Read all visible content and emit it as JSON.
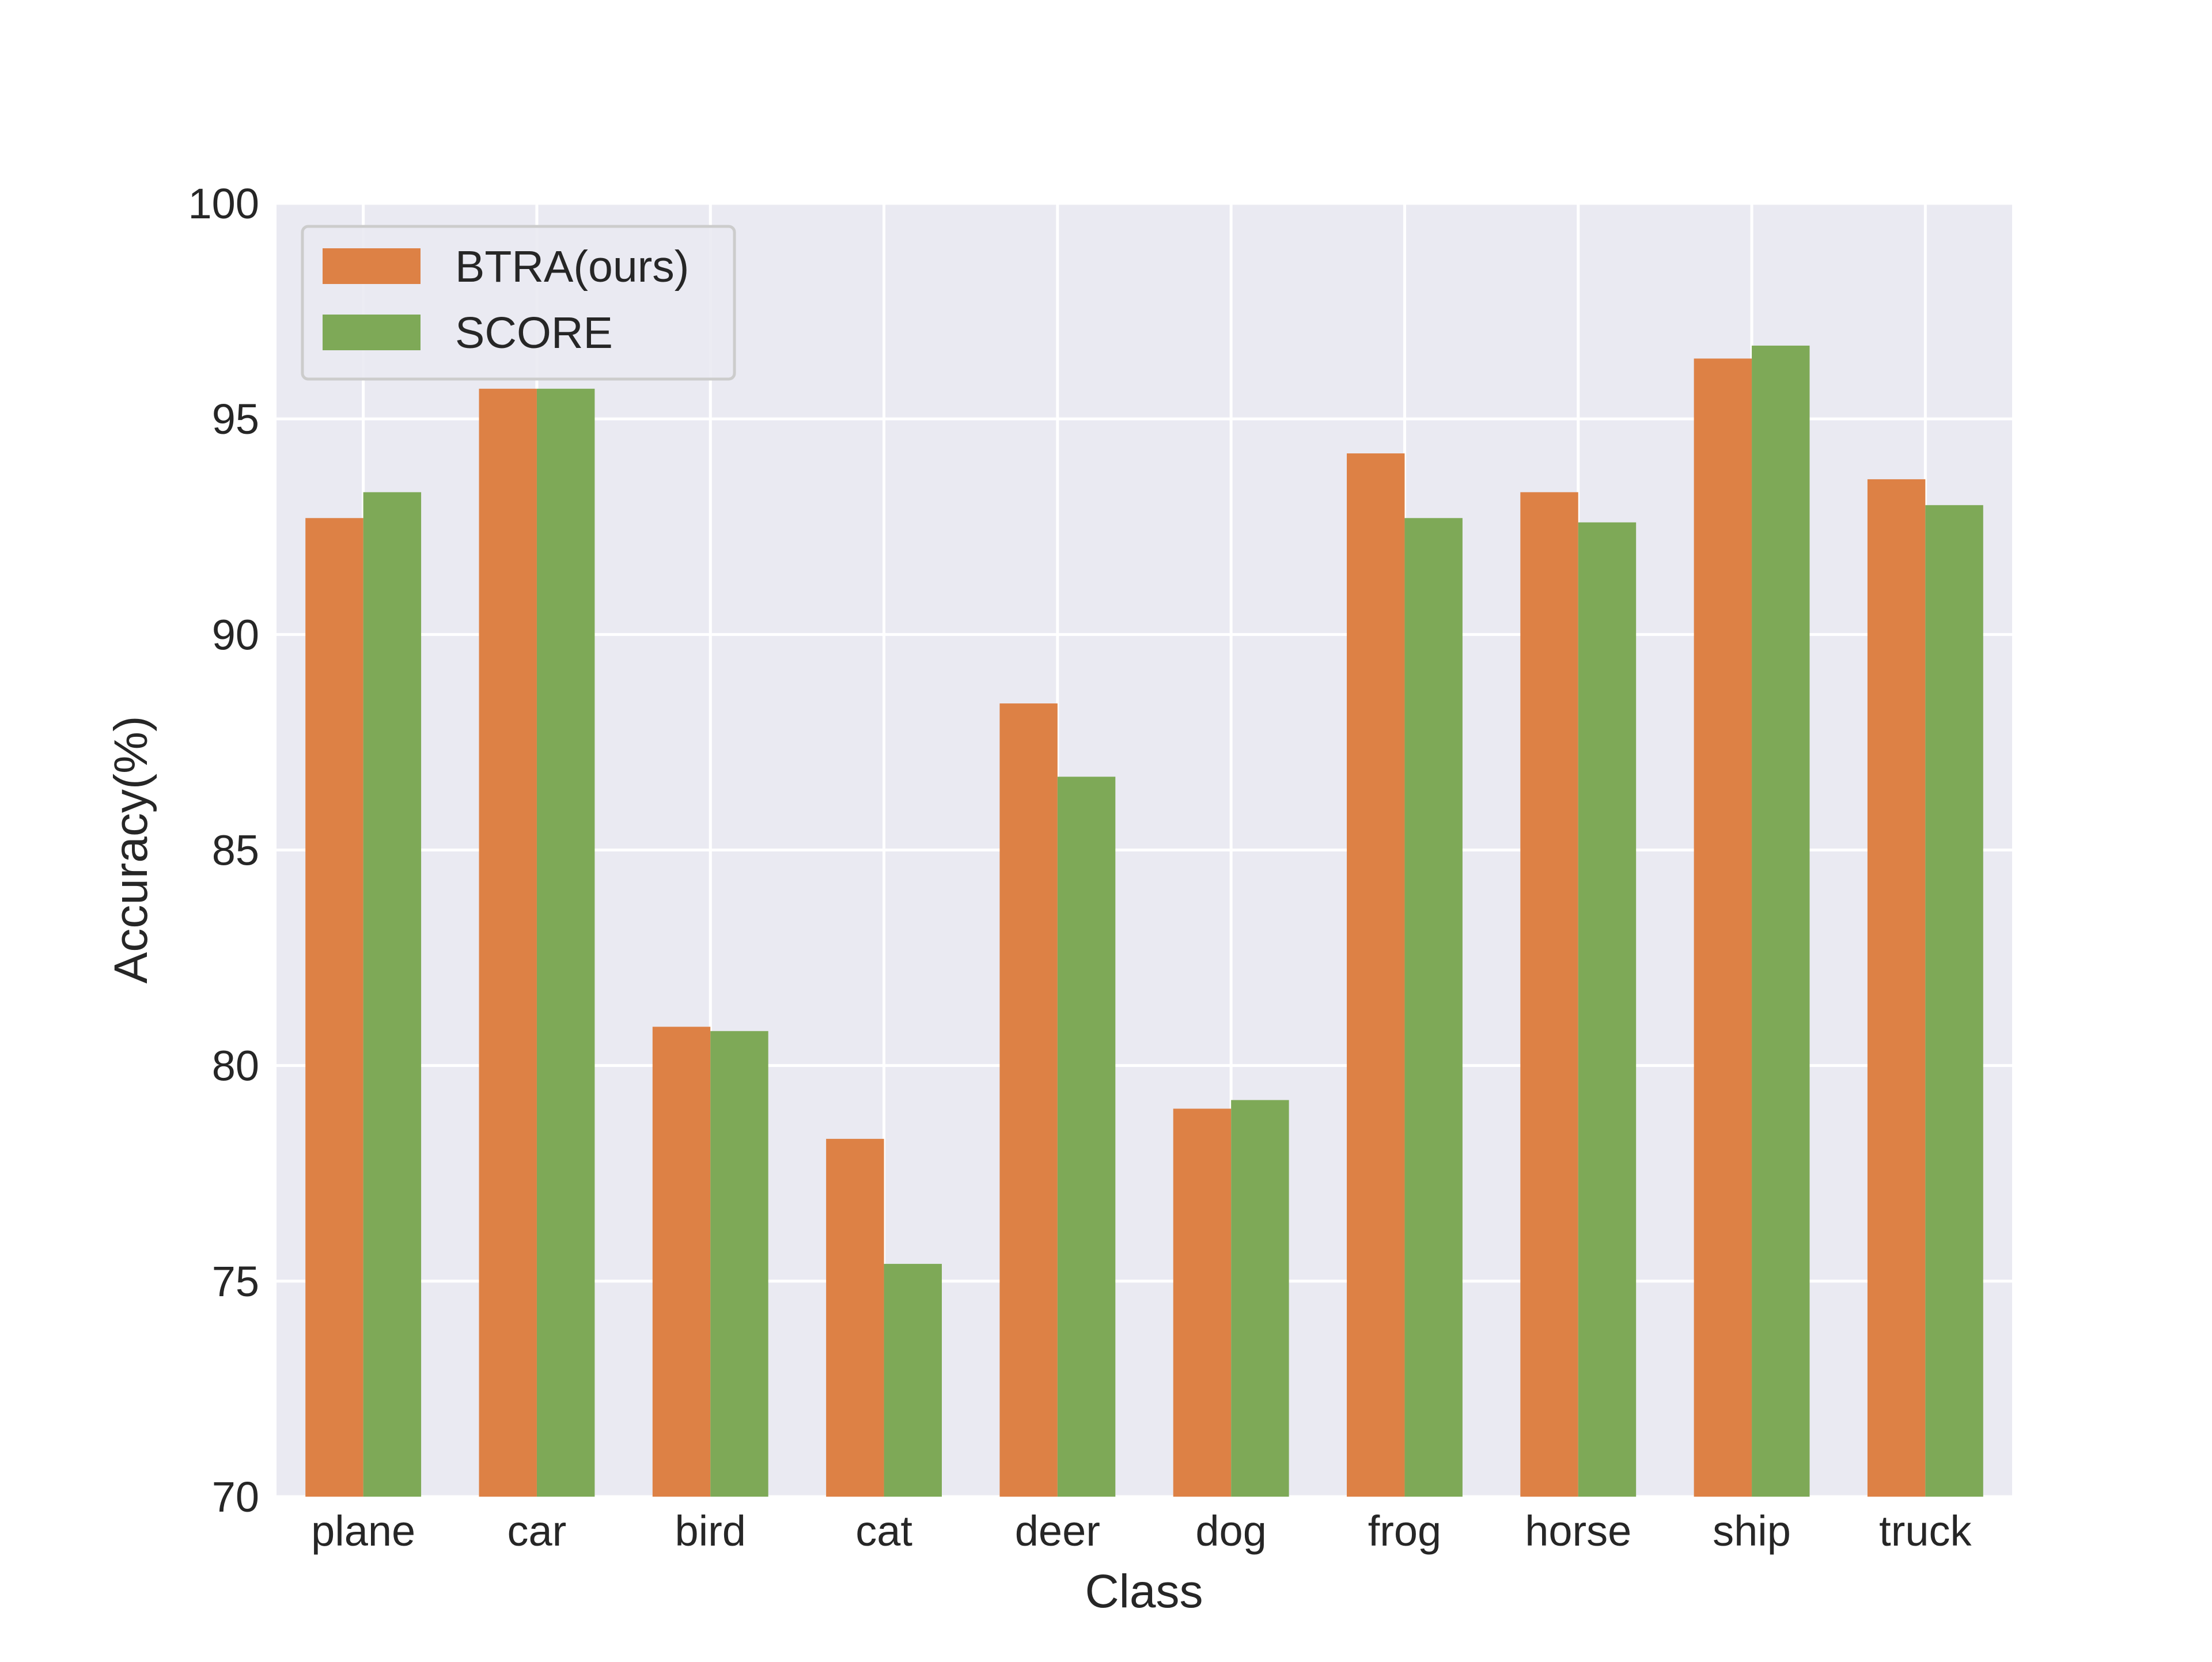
{
  "chart_data": {
    "type": "bar",
    "title": "",
    "xlabel": "Class",
    "ylabel": "Accuracy(%)",
    "ylim": [
      70,
      100
    ],
    "yticks": [
      70,
      75,
      80,
      85,
      90,
      95,
      100
    ],
    "grid": true,
    "legend_position": "top-left",
    "categories": [
      "plane",
      "car",
      "bird",
      "cat",
      "deer",
      "dog",
      "frog",
      "horse",
      "ship",
      "truck"
    ],
    "series": [
      {
        "name": "BTRA(ours)",
        "color": "#dd8145",
        "values": [
          92.7,
          95.7,
          80.9,
          78.3,
          88.4,
          79.0,
          94.2,
          93.3,
          96.4,
          93.6
        ]
      },
      {
        "name": "SCORE",
        "color": "#7ea957",
        "values": [
          93.3,
          95.7,
          80.8,
          75.4,
          86.7,
          79.2,
          92.7,
          92.6,
          96.7,
          93.0
        ]
      }
    ]
  }
}
